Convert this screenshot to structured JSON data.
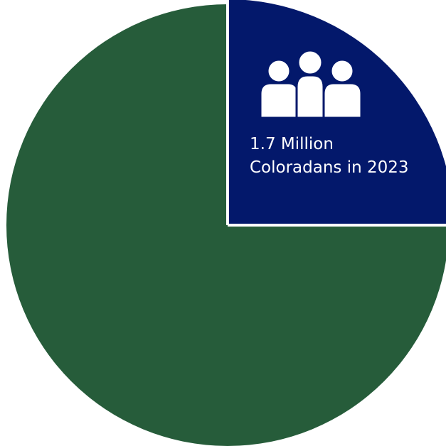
{
  "chart_data": {
    "type": "pie",
    "start_angle_deg": 0,
    "direction": "clockwise",
    "slices": [
      {
        "value": 25,
        "color": "#03186b",
        "label_lines": [
          "1.7 Million",
          "Coloradans in 2023"
        ],
        "label_color": "#ffffff",
        "icon": "people-group-icon",
        "icon_color": "#ffffff"
      },
      {
        "value": 75,
        "color": "#265c3a",
        "label_lines": [],
        "label_color": "#ffffff"
      }
    ],
    "separator_color": "#ffffff"
  }
}
